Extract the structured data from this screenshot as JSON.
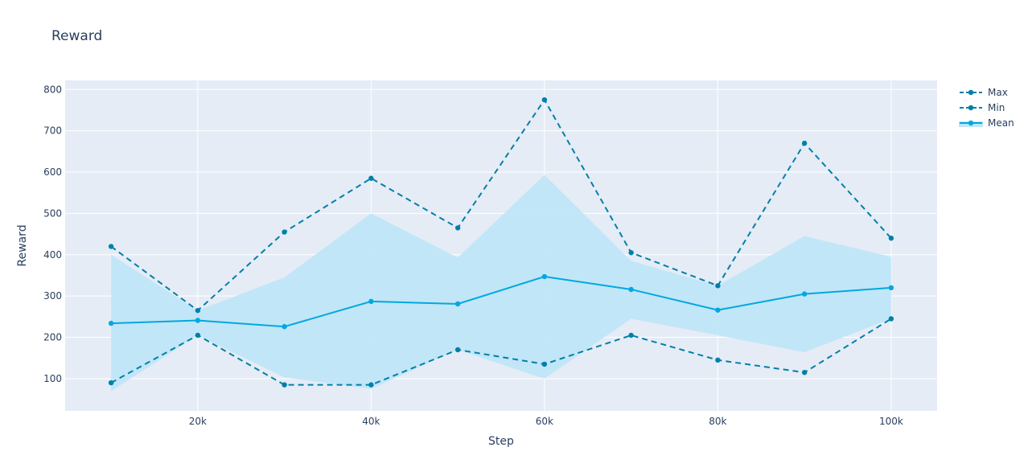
{
  "chart_data": {
    "type": "line",
    "title": "Reward",
    "xlabel": "Step",
    "ylabel": "Reward",
    "x": [
      10000,
      20000,
      30000,
      40000,
      50000,
      60000,
      70000,
      80000,
      90000,
      100000
    ],
    "x_ticks": [
      20000,
      40000,
      60000,
      80000,
      100000
    ],
    "x_tick_labels": [
      "20k",
      "40k",
      "60k",
      "80k",
      "100k"
    ],
    "y_ticks": [
      100,
      200,
      300,
      400,
      500,
      600,
      700,
      800
    ],
    "y_tick_labels": [
      "100",
      "200",
      "300",
      "400",
      "500",
      "600",
      "700",
      "800"
    ],
    "xlim": [
      4700,
      105300
    ],
    "ylim": [
      22,
      822
    ],
    "series": [
      {
        "name": "Max",
        "values": [
          420,
          265,
          455,
          585,
          465,
          775,
          405,
          325,
          670,
          440
        ],
        "color": "#0080a8",
        "dash": true
      },
      {
        "name": "Min",
        "values": [
          90,
          205,
          85,
          85,
          170,
          135,
          205,
          145,
          115,
          245
        ],
        "color": "#0080a8",
        "dash": true
      },
      {
        "name": "Mean",
        "values": [
          234,
          241,
          226,
          287,
          281,
          347,
          316,
          266,
          305,
          320
        ],
        "color": "#00a8e0",
        "dash": false
      }
    ],
    "band": {
      "upper": [
        400,
        265,
        345,
        500,
        393,
        593,
        385,
        325,
        445,
        395
      ],
      "lower": [
        70,
        205,
        103,
        75,
        170,
        100,
        245,
        205,
        164,
        245
      ],
      "color": "#bde6f7"
    },
    "grid": true,
    "legend_position": "top-right",
    "plot_bgcolor": "#e5ecf6"
  }
}
